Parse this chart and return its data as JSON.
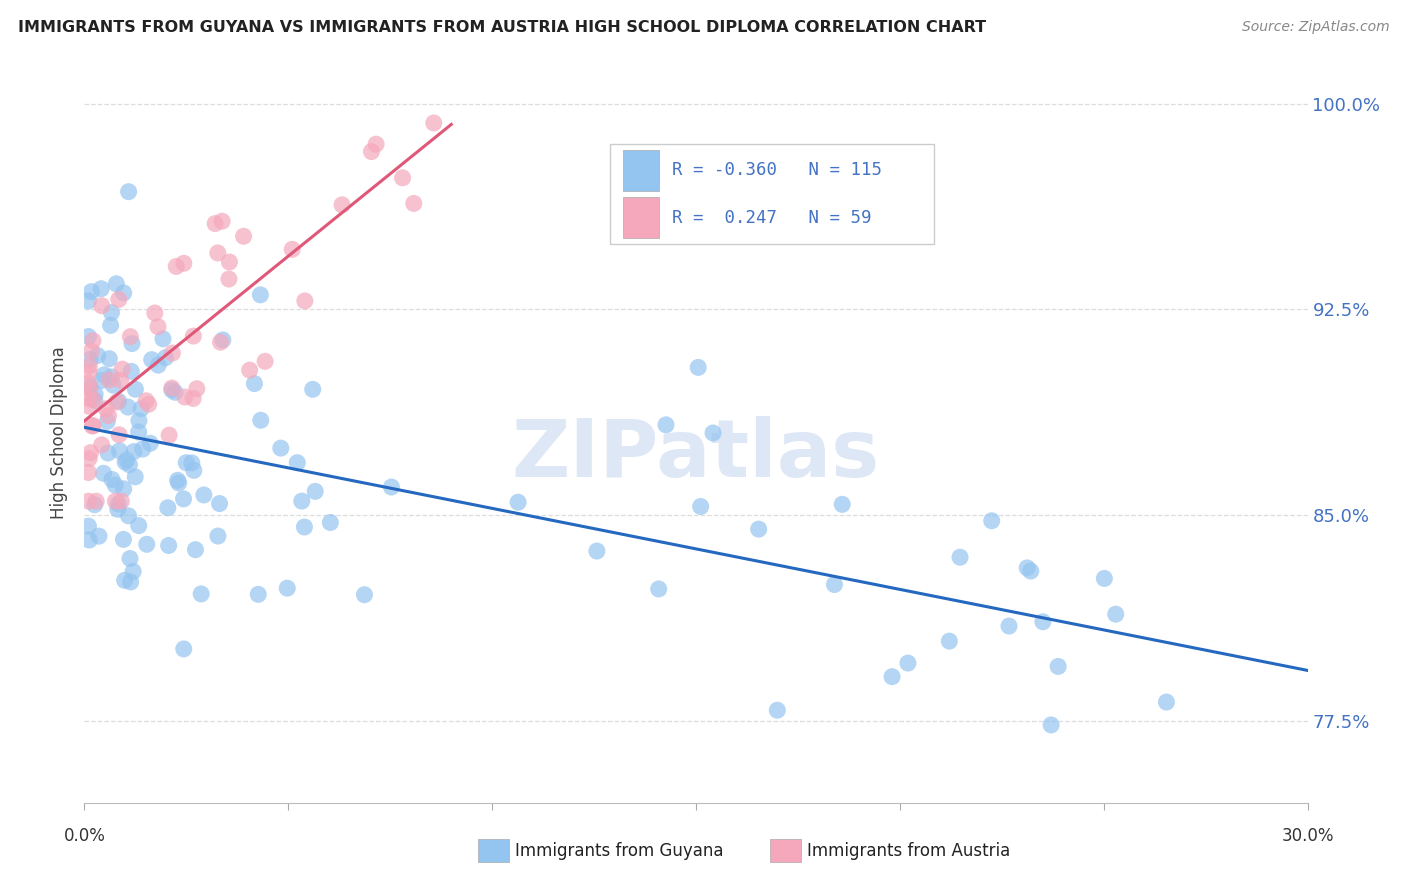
{
  "title": "IMMIGRANTS FROM GUYANA VS IMMIGRANTS FROM AUSTRIA HIGH SCHOOL DIPLOMA CORRELATION CHART",
  "source": "Source: ZipAtlas.com",
  "ylabel": "High School Diploma",
  "yticks_labels": [
    "77.5%",
    "85.0%",
    "92.5%",
    "100.0%"
  ],
  "ytick_values": [
    0.775,
    0.85,
    0.925,
    1.0
  ],
  "xlim": [
    0.0,
    0.3
  ],
  "ylim": [
    0.745,
    1.015
  ],
  "xtick_positions": [
    0.0,
    0.05,
    0.1,
    0.15,
    0.2,
    0.25,
    0.3
  ],
  "legend_r_guyana": "-0.360",
  "legend_n_guyana": "115",
  "legend_r_austria": " 0.247",
  "legend_n_austria": "59",
  "color_guyana": "#94C4F0",
  "color_austria": "#F5A8BC",
  "color_trendline_guyana": "#2468C0",
  "color_trendline_austria": "#E05878",
  "watermark": "ZIPatlas",
  "watermark_color": "#C8D8F0",
  "bg_color": "#FFFFFF",
  "grid_color": "#DDDDDD",
  "title_color": "#222222",
  "source_color": "#888888",
  "right_tick_color": "#4472C4",
  "bottom_legend_text_color": "#222222",
  "legend_text_color": "#4472C4"
}
